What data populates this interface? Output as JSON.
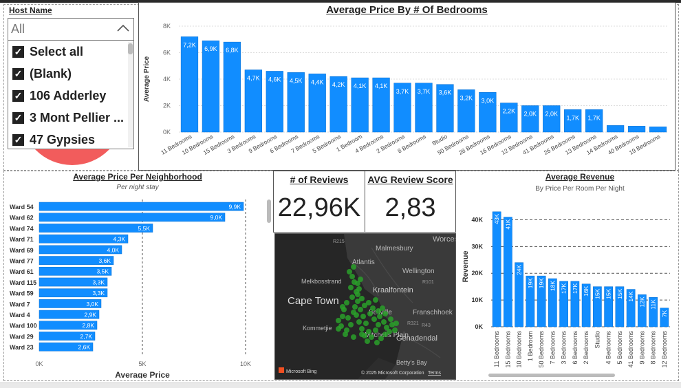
{
  "colors": {
    "bar": "#118DFF",
    "bar_stroke": "#0a6fcf",
    "map_bg": "#2d2d2d",
    "map_dots": "#2aa02a",
    "pie": "#f25c5c"
  },
  "slicer": {
    "label": "Host Name",
    "value": "All",
    "chevron_icon": "chevron-up-icon",
    "items": [
      {
        "label": "Select all",
        "checked": true
      },
      {
        "label": "(Blank)",
        "checked": true
      },
      {
        "label": "106 Adderley",
        "checked": true
      },
      {
        "label": "3 Mont Pellier ...",
        "checked": true
      },
      {
        "label": "47 Gypsies",
        "checked": true
      }
    ]
  },
  "kpi": {
    "reviews": {
      "title": "# of Reviews",
      "value": "22,96K"
    },
    "score": {
      "title": "AVG Review Score",
      "value": "2,83"
    }
  },
  "map": {
    "places": [
      "R215",
      "Malmesbury",
      "Atlantis",
      "Wellington",
      "Melkbosstrand",
      "R101",
      "Cape Town",
      "Kraalfontein",
      "Franschhoek",
      "Bellville",
      "Kommetjie",
      "R321",
      "R43",
      "Mitchells Plain",
      "Genadendal",
      "Betty's Bay",
      "Worcester"
    ],
    "attribution": "© 2025 Microsoft Corporation",
    "terms": "Terms",
    "logo": "Microsoft Bing"
  },
  "chart_data": [
    {
      "id": "bedrooms",
      "type": "bar",
      "title": "Average Price By # Of Bedrooms",
      "ylabel": "Average Price",
      "xlabel": "",
      "ylim": [
        0,
        8000
      ],
      "yticks": [
        0,
        2000,
        4000,
        6000,
        8000
      ],
      "ytick_labels": [
        "0K",
        "2K",
        "4K",
        "6K",
        "8K"
      ],
      "grid": true,
      "categories": [
        "11 Bedrooms",
        "10 Bedrooms",
        "15 Bedrooms",
        "3 Bedrooms",
        "9 Bedrooms",
        "6 Bedrooms",
        "7 Bedrooms",
        "5 Bedrooms",
        "1 Bedroom",
        "4 Bedrooms",
        "2 Bedrooms",
        "8 Bedrooms",
        "Studio",
        "50 Bedrooms",
        "28 Bedrooms",
        "16 Bedrooms",
        "12 Bedrooms",
        "41 Bedrooms",
        "26 Bedrooms",
        "13 Bedrooms",
        "14 Bedrooms",
        "40 Bedrooms",
        "19 Bedrooms"
      ],
      "values": [
        7200,
        6900,
        6800,
        4700,
        4600,
        4500,
        4400,
        4200,
        4100,
        4100,
        3700,
        3700,
        3600,
        3200,
        3000,
        2200,
        2000,
        2000,
        1700,
        1700,
        500,
        450,
        400
      ],
      "labels": [
        "7,2K",
        "6,9K",
        "6,8K",
        "4,7K",
        "4,6K",
        "4,5K",
        "4,4K",
        "4,2K",
        "4,1K",
        "4,1K",
        "3,7K",
        "3,7K",
        "3,6K",
        "3,2K",
        "3,0K",
        "2,2K",
        "2,0K",
        "2,0K",
        "1,7K",
        "1,7K",
        "",
        "",
        ""
      ]
    },
    {
      "id": "neighborhood",
      "type": "bar",
      "orientation": "horizontal",
      "title": "Average Price Per Neighborhood",
      "subtitle": "Per night stay",
      "xlabel": "Average Price",
      "xlim": [
        0,
        10000
      ],
      "xticks": [
        0,
        5000,
        10000
      ],
      "xtick_labels": [
        "0K",
        "5K",
        "10K"
      ],
      "categories": [
        "Ward 54",
        "Ward 62",
        "Ward 74",
        "Ward 71",
        "Ward 69",
        "Ward 77",
        "Ward 61",
        "Ward 115",
        "Ward 59",
        "Ward 7",
        "Ward 4",
        "Ward 100",
        "Ward 29",
        "Ward 23"
      ],
      "values": [
        9900,
        9000,
        5500,
        4300,
        4000,
        3600,
        3500,
        3300,
        3300,
        3000,
        2900,
        2800,
        2700,
        2600
      ],
      "labels": [
        "9,9K",
        "9,0K",
        "5,5K",
        "4,3K",
        "4,0K",
        "3,6K",
        "3,5K",
        "3,3K",
        "3,3K",
        "3,0K",
        "2,9K",
        "2,8K",
        "2,7K",
        "2,6K"
      ]
    },
    {
      "id": "revenue",
      "type": "bar",
      "title": "Average Revenue",
      "subtitle": "By Price Per Room Per Night",
      "ylabel": "Revenue",
      "ylim": [
        0,
        45000
      ],
      "yticks": [
        0,
        10000,
        20000,
        30000,
        40000
      ],
      "ytick_labels": [
        "0K",
        "10K",
        "20K",
        "30K",
        "40K"
      ],
      "categories": [
        "11 Bedrooms",
        "15 Bedrooms",
        "10 Bedrooms",
        "1 Bedroom",
        "50 Bedrooms",
        "7 Bedrooms",
        "3 Bedrooms",
        "6 Bedrooms",
        "2 Bedrooms",
        "Studio",
        "4 Bedrooms",
        "5 Bedrooms",
        "41 Bedrooms",
        "9 Bedrooms",
        "8 Bedrooms",
        "12 Bedrooms"
      ],
      "values": [
        43000,
        41000,
        24000,
        19000,
        19000,
        18000,
        17000,
        17000,
        16000,
        15000,
        15000,
        15000,
        14000,
        12000,
        11000,
        7000
      ],
      "labels": [
        "43K",
        "41K",
        "24K",
        "19K",
        "19K",
        "18K",
        "17K",
        "17K",
        "16K",
        "15K",
        "15K",
        "15K",
        "14K",
        "12K",
        "11K",
        "7K"
      ]
    }
  ]
}
